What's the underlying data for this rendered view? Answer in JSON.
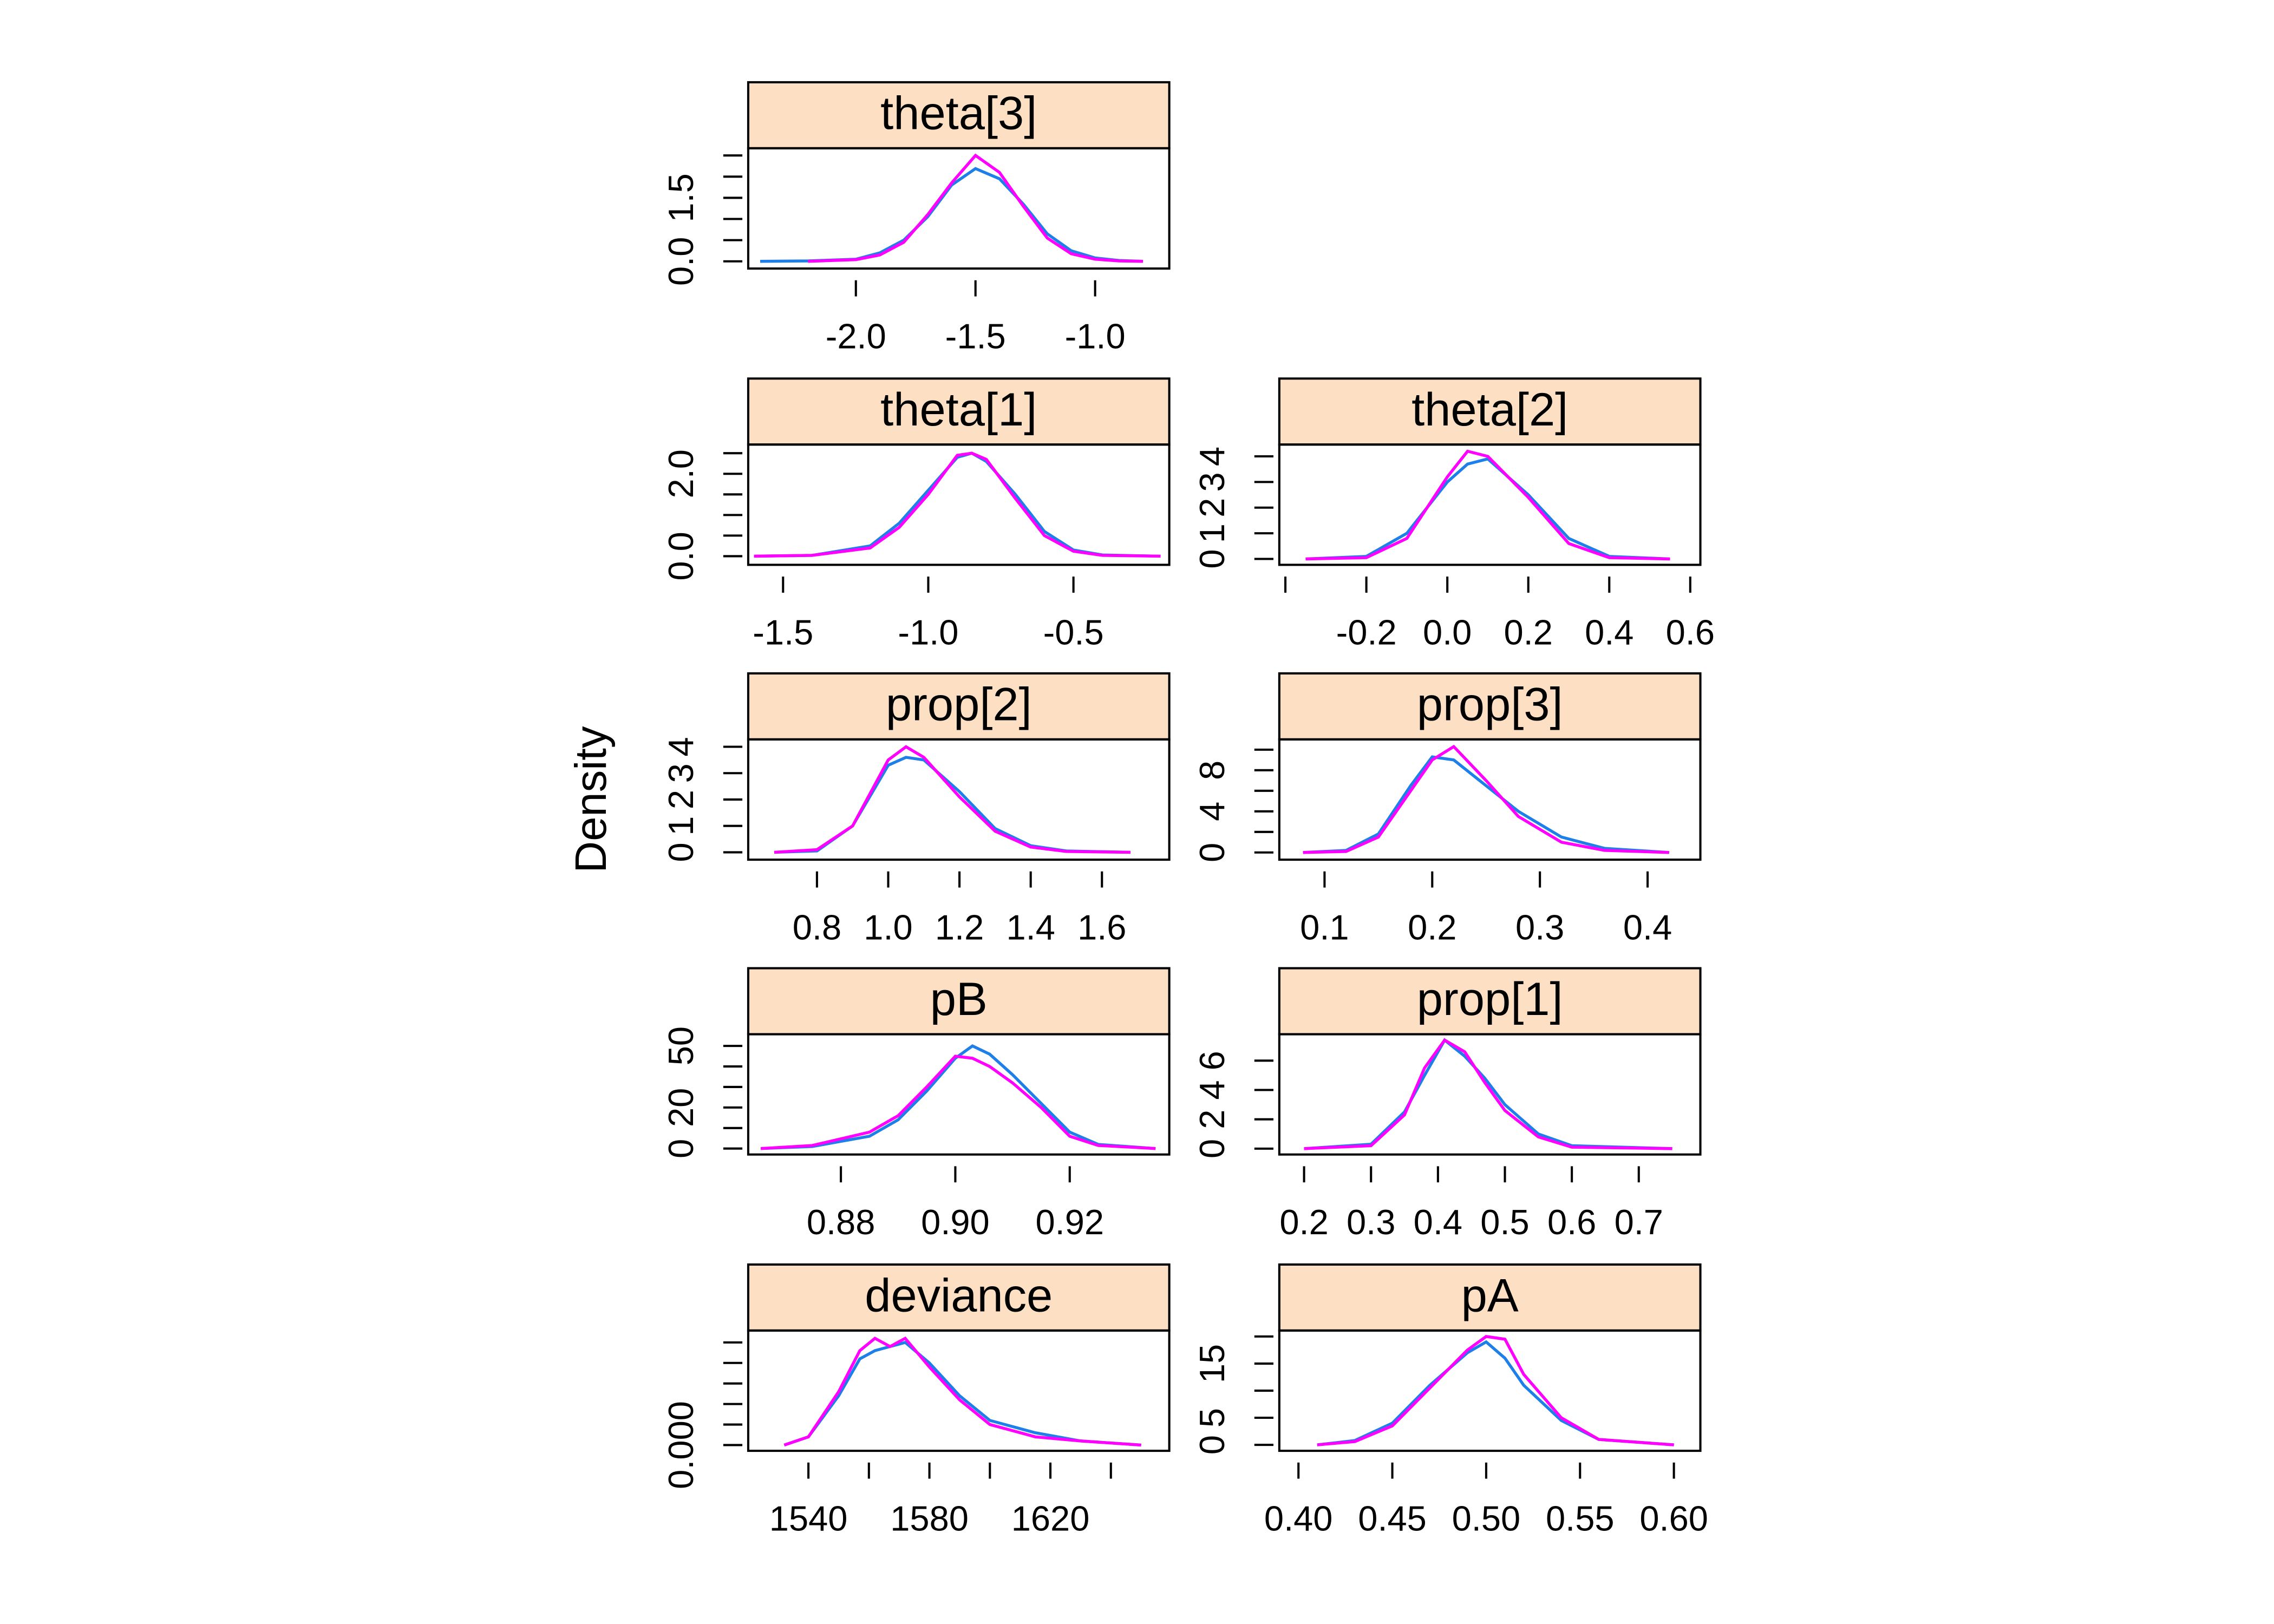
{
  "ylabel": "Density",
  "chart_data": [
    {
      "type": "line",
      "title": "theta[3]",
      "xlim": [
        -2.45,
        -0.69
      ],
      "xticks": [
        {
          "value": -2.0,
          "label": "-2.0"
        },
        {
          "value": -1.5,
          "label": "-1.5"
        },
        {
          "value": -1.0,
          "label": "-1.0"
        }
      ],
      "ylim": [
        -0.17,
        2.67
      ],
      "yticks": [
        {
          "value": 0,
          "label": "0.0"
        },
        {
          "value": 0.5,
          "label": null
        },
        {
          "value": 1.0,
          "label": null
        },
        {
          "value": 1.5,
          "label": "1.5"
        },
        {
          "value": 2.0,
          "label": null
        },
        {
          "value": 2.5,
          "label": null
        }
      ],
      "x": [
        -2.4,
        -2.2,
        -2.0,
        -1.9,
        -1.8,
        -1.7,
        -1.6,
        -1.5,
        -1.4,
        -1.3,
        -1.2,
        -1.1,
        -1.0,
        -0.9,
        -0.8
      ],
      "series": [
        {
          "color": "#1f7fe8",
          "values": [
            0,
            0.01,
            0.05,
            0.2,
            0.5,
            1.05,
            1.8,
            2.19,
            1.95,
            1.35,
            0.65,
            0.25,
            0.08,
            0.02,
            0
          ]
        },
        {
          "color": "#ff00ff",
          "values": [
            null,
            0,
            0.04,
            0.15,
            0.45,
            1.1,
            1.85,
            2.5,
            2.1,
            1.3,
            0.55,
            0.18,
            0.05,
            0.01,
            0
          ]
        }
      ]
    },
    {
      "type": "line",
      "title": "theta[1]",
      "xlim": [
        -1.62,
        -0.17
      ],
      "xticks": [
        -1.5,
        {
          "value": -1.0,
          "label": "-1.0"
        },
        -0.5
      ],
      "ylim": [
        -0.21,
        2.71
      ],
      "yticks": [
        {
          "value": 0,
          "label": "0.0"
        },
        {
          "value": 0.5,
          "label": null
        },
        {
          "value": 1.0,
          "label": null
        },
        {
          "value": 1.5,
          "label": null
        },
        {
          "value": 2.0,
          "label": "2.0"
        },
        {
          "value": 2.5,
          "label": null
        }
      ],
      "x": [
        -1.6,
        -1.4,
        -1.2,
        -1.1,
        -1.0,
        -0.9,
        -0.85,
        -0.8,
        -0.7,
        -0.6,
        -0.5,
        -0.4,
        -0.2
      ],
      "series": [
        {
          "color": "#1f7fe8",
          "values": [
            0,
            0.02,
            0.25,
            0.8,
            1.6,
            2.4,
            2.5,
            2.3,
            1.5,
            0.6,
            0.15,
            0.03,
            0
          ]
        },
        {
          "color": "#ff00ff",
          "values": [
            0,
            0.02,
            0.2,
            0.7,
            1.5,
            2.45,
            2.5,
            2.35,
            1.4,
            0.5,
            0.12,
            0.02,
            0
          ]
        }
      ]
    },
    {
      "type": "line",
      "title": "theta[2]",
      "xlim": [
        -0.415,
        0.625
      ],
      "xticks": [
        {
          "value": -0.4,
          "label": null
        },
        -0.2,
        {
          "value": 0,
          "label": "0.0"
        },
        0.2,
        0.4,
        0.6
      ],
      "ylim": [
        -0.23,
        4.46
      ],
      "yticks": [
        0,
        1,
        2,
        3,
        4
      ],
      "x": [
        -0.35,
        -0.2,
        -0.1,
        0,
        0.05,
        0.1,
        0.2,
        0.3,
        0.4,
        0.55
      ],
      "series": [
        {
          "color": "#1f7fe8",
          "values": [
            0,
            0.1,
            1.0,
            3.0,
            3.7,
            3.9,
            2.5,
            0.8,
            0.1,
            0
          ]
        },
        {
          "color": "#ff00ff",
          "values": [
            0,
            0.05,
            0.8,
            3.2,
            4.2,
            4.0,
            2.4,
            0.6,
            0.05,
            0
          ]
        }
      ]
    },
    {
      "type": "line",
      "title": "prop[2]",
      "xlim": [
        0.607,
        1.789
      ],
      "xticks": [
        0.8,
        {
          "value": 1.0,
          "label": "1.0"
        },
        1.2,
        1.4,
        1.6
      ],
      "ylim": [
        -0.28,
        4.28
      ],
      "yticks": [
        0,
        1,
        2,
        3,
        4
      ],
      "x": [
        0.68,
        0.8,
        0.9,
        1.0,
        1.05,
        1.1,
        1.2,
        1.3,
        1.4,
        1.5,
        1.68
      ],
      "series": [
        {
          "color": "#1f7fe8",
          "values": [
            0,
            0.05,
            1.0,
            3.3,
            3.6,
            3.5,
            2.3,
            0.9,
            0.25,
            0.05,
            0
          ]
        },
        {
          "color": "#ff00ff",
          "values": [
            0,
            0.1,
            1.0,
            3.5,
            4.0,
            3.6,
            2.1,
            0.8,
            0.2,
            0.03,
            0
          ]
        }
      ]
    },
    {
      "type": "line",
      "title": "prop[3]",
      "xlim": [
        0.058,
        0.449
      ],
      "xticks": [
        0.1,
        0.2,
        0.3,
        0.4
      ],
      "ylim": [
        -0.7,
        11.0
      ],
      "yticks": [
        0,
        {
          "value": 2,
          "label": null
        },
        4,
        {
          "value": 6,
          "label": null
        },
        8,
        {
          "value": 10,
          "label": null
        }
      ],
      "x": [
        0.08,
        0.12,
        0.15,
        0.18,
        0.2,
        0.22,
        0.25,
        0.28,
        0.32,
        0.36,
        0.42
      ],
      "series": [
        {
          "color": "#1f7fe8",
          "values": [
            0,
            0.2,
            1.8,
            6.5,
            9.3,
            9.0,
            6.5,
            4.0,
            1.5,
            0.4,
            0
          ]
        },
        {
          "color": "#ff00ff",
          "values": [
            0,
            0.1,
            1.5,
            6.0,
            9.0,
            10.3,
            7.0,
            3.5,
            1.0,
            0.2,
            0
          ]
        }
      ]
    },
    {
      "type": "line",
      "title": "pB",
      "xlim": [
        0.8638,
        0.9374
      ],
      "xticks": [
        0.88,
        {
          "value": 0.9,
          "label": "0.90"
        },
        0.92
      ],
      "ylim": [
        -2.9,
        55.7
      ],
      "yticks": [
        0,
        {
          "value": 10,
          "label": null
        },
        20,
        {
          "value": 30,
          "label": null
        },
        {
          "value": 40,
          "label": null
        },
        50
      ],
      "x": [
        0.866,
        0.875,
        0.885,
        0.89,
        0.895,
        0.9,
        0.903,
        0.906,
        0.91,
        0.915,
        0.92,
        0.925,
        0.935
      ],
      "series": [
        {
          "color": "#1f7fe8",
          "values": [
            0,
            1,
            6,
            14,
            28,
            44,
            50,
            46,
            36,
            22,
            8,
            2,
            0
          ]
        },
        {
          "color": "#ff00ff",
          "values": [
            0,
            1.5,
            8,
            16,
            30,
            45,
            44,
            40,
            32,
            20,
            6,
            1.5,
            0
          ]
        }
      ]
    },
    {
      "type": "line",
      "title": "prop[1]",
      "xlim": [
        0.163,
        0.792
      ],
      "xticks": [
        0.2,
        0.3,
        0.4,
        0.5,
        0.6,
        0.7
      ],
      "ylim": [
        -0.4,
        7.8
      ],
      "yticks": [
        0,
        2,
        4,
        6
      ],
      "x": [
        0.2,
        0.3,
        0.35,
        0.38,
        0.41,
        0.44,
        0.47,
        0.5,
        0.55,
        0.6,
        0.75
      ],
      "series": [
        {
          "color": "#1f7fe8",
          "values": [
            0,
            0.3,
            2.5,
            5.0,
            7.4,
            6.3,
            4.8,
            3.0,
            1.0,
            0.2,
            0
          ]
        },
        {
          "color": "#ff00ff",
          "values": [
            0,
            0.2,
            2.3,
            5.5,
            7.4,
            6.6,
            4.5,
            2.6,
            0.8,
            0.1,
            0
          ]
        }
      ]
    },
    {
      "type": "line",
      "title": "deviance",
      "xlim": [
        1520.1,
        1659.3
      ],
      "xticks": [
        1540,
        {
          "value": 1560,
          "label": null
        },
        1580,
        {
          "value": 1600,
          "label": null
        },
        1620,
        {
          "value": 1640,
          "label": null
        }
      ],
      "ylim": [
        -0.0014,
        0.0279
      ],
      "yticks": [
        {
          "value": 0,
          "label": "0.000"
        },
        {
          "value": 0.005,
          "label": null
        },
        {
          "value": 0.01,
          "label": null
        },
        {
          "value": 0.015,
          "label": null
        },
        {
          "value": 0.02,
          "label": null
        },
        {
          "value": 0.025,
          "label": null
        }
      ],
      "x": [
        1532,
        1540,
        1550,
        1557,
        1562,
        1567,
        1572,
        1580,
        1590,
        1600,
        1615,
        1630,
        1650
      ],
      "series": [
        {
          "color": "#1f7fe8",
          "values": [
            0,
            0.002,
            0.012,
            0.021,
            0.023,
            0.024,
            0.025,
            0.02,
            0.012,
            0.006,
            0.003,
            0.001,
            0
          ]
        },
        {
          "color": "#ff00ff",
          "values": [
            0,
            0.002,
            0.013,
            0.023,
            0.026,
            0.024,
            0.026,
            0.019,
            0.011,
            0.005,
            0.002,
            0.001,
            0
          ]
        }
      ]
    },
    {
      "type": "line",
      "title": "pA",
      "xlim": [
        0.3898,
        0.6141
      ],
      "xticks": [
        {
          "value": 0.4,
          "label": "0.40"
        },
        0.45,
        {
          "value": 0.5,
          "label": "0.50"
        },
        0.55,
        {
          "value": 0.6,
          "label": "0.60"
        }
      ],
      "ylim": [
        -1.1,
        21.1
      ],
      "yticks": [
        0,
        5,
        {
          "value": 10,
          "label": null
        },
        15,
        {
          "value": 20,
          "label": null
        }
      ],
      "x": [
        0.41,
        0.43,
        0.45,
        0.47,
        0.48,
        0.49,
        0.5,
        0.51,
        0.52,
        0.54,
        0.56,
        0.6
      ],
      "series": [
        {
          "color": "#1f7fe8",
          "values": [
            0,
            0.8,
            4,
            11,
            14,
            17,
            19,
            16,
            11,
            4.5,
            1,
            0
          ]
        },
        {
          "color": "#ff00ff",
          "values": [
            0,
            0.6,
            3.5,
            10.5,
            14,
            17.5,
            20,
            19.5,
            13,
            5,
            1,
            0
          ]
        }
      ]
    }
  ]
}
